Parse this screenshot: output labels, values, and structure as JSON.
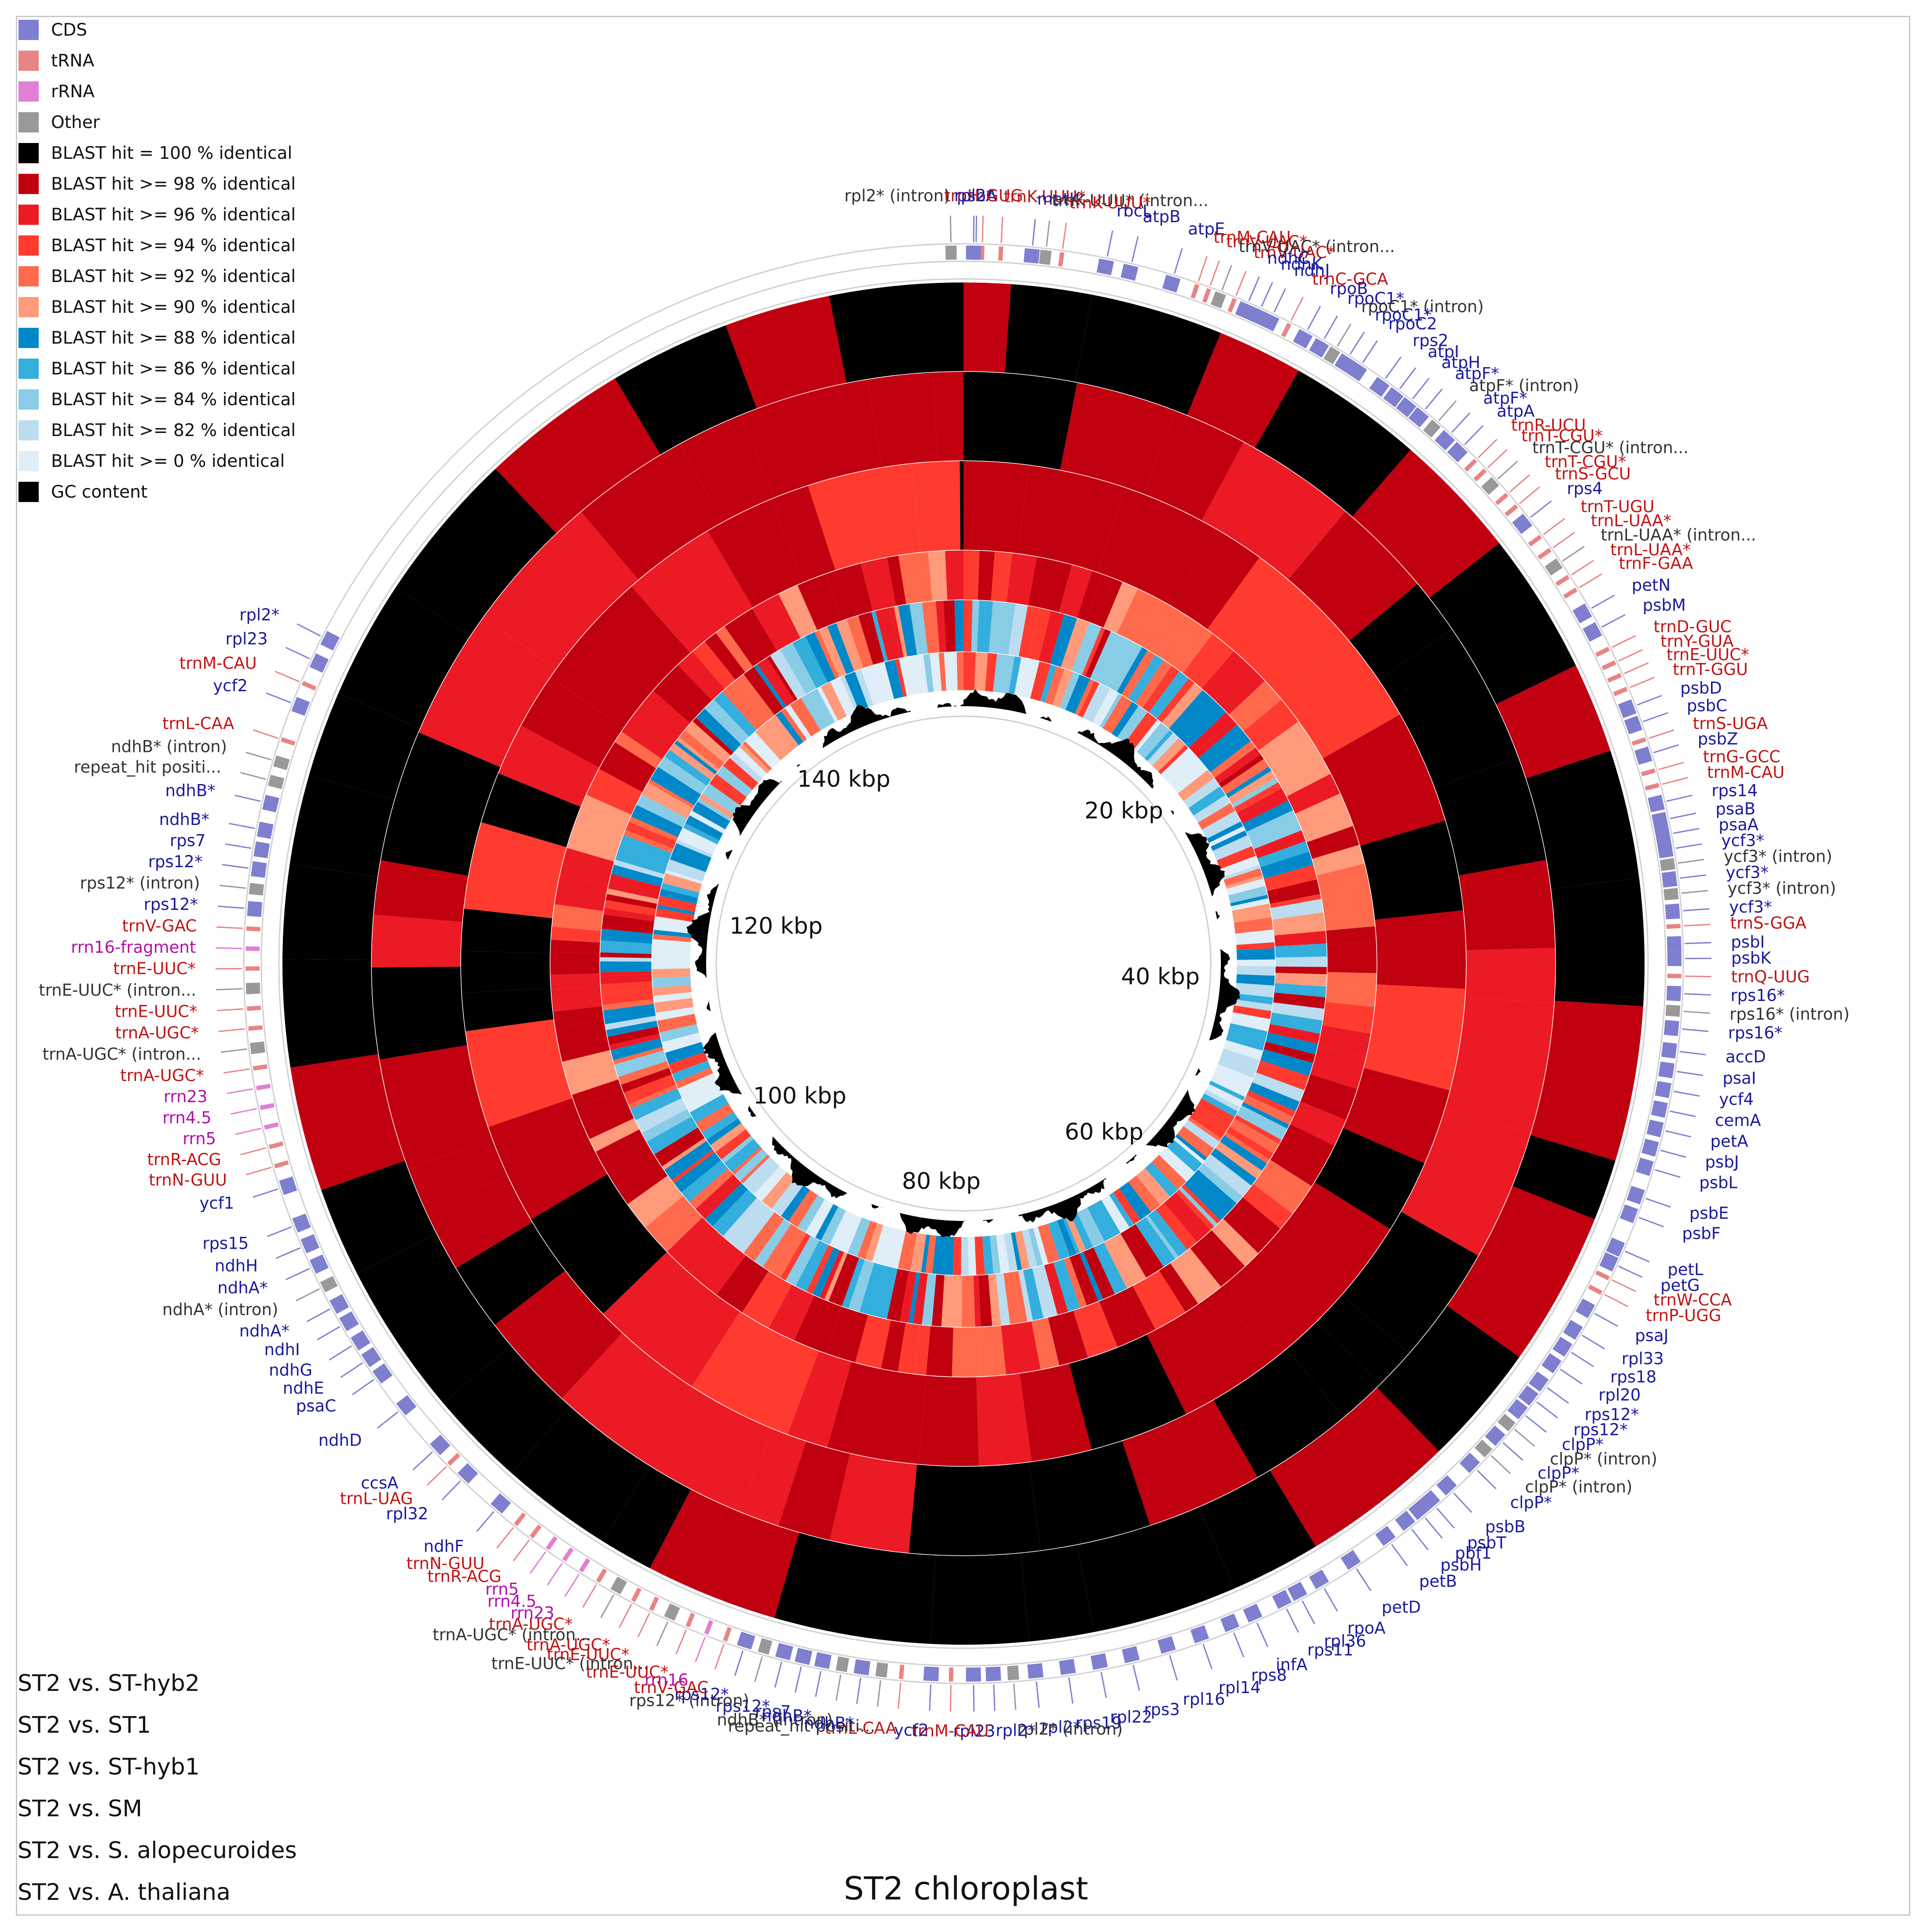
{
  "title": "ST2 chloroplast",
  "legend": [
    {
      "label": "CDS",
      "color": "#7f7fd0"
    },
    {
      "label": "tRNA",
      "color": "#e88484"
    },
    {
      "label": "rRNA",
      "color": "#e07fd4"
    },
    {
      "label": "Other",
      "color": "#999999"
    },
    {
      "label": "BLAST hit = 100 % identical",
      "color": "#000000"
    },
    {
      "label": "BLAST hit >= 98 % identical",
      "color": "#c10010"
    },
    {
      "label": "BLAST hit >= 96 % identical",
      "color": "#ec1a24"
    },
    {
      "label": "BLAST hit >= 94 % identical",
      "color": "#ff3b30"
    },
    {
      "label": "BLAST hit >= 92 % identical",
      "color": "#ff6a4d"
    },
    {
      "label": "BLAST hit >= 90 % identical",
      "color": "#ff9a7a"
    },
    {
      "label": "BLAST hit >= 88 % identical",
      "color": "#0088c8"
    },
    {
      "label": "BLAST hit >= 86 % identical",
      "color": "#33aedd"
    },
    {
      "label": "BLAST hit >= 84 % identical",
      "color": "#88cce6"
    },
    {
      "label": "BLAST hit >= 82 % identical",
      "color": "#bcdcf0"
    },
    {
      "label": "BLAST hit >= 0 % identical",
      "color": "#e0eef8"
    },
    {
      "label": "GC content",
      "color": "#000000"
    }
  ],
  "rings": [
    "ST2 vs. ST-hyb2",
    "ST2 vs. ST1",
    "ST2 vs. ST-hyb1",
    "ST2 vs. SM",
    "ST2 vs. S. alopecuroides",
    "ST2 vs. A. thaliana"
  ],
  "kbp_labels": [
    "20 kbp",
    "40 kbp",
    "60 kbp",
    "80 kbp",
    "100 kbp",
    "120 kbp",
    "140 kbp"
  ],
  "gene_colors": {
    "cds": "#1a1a9c",
    "trna": "#c01515",
    "rrna": "#b010a8",
    "other": "#333333"
  },
  "genes": [
    {
      "name": "trnK-UUU*",
      "type": "trna",
      "angle": 3.0
    },
    {
      "name": "psbA",
      "type": "cds",
      "angle": 1.0
    },
    {
      "name": "trnH-GUG",
      "type": "trna",
      "angle": 1.5
    },
    {
      "name": "rpl2*",
      "type": "cds",
      "angle": 0.8
    },
    {
      "name": "rpl2* (intron)",
      "type": "other",
      "angle": -1.0
    },
    {
      "name": "matK",
      "type": "cds",
      "angle": 5.5
    },
    {
      "name": "trnK-UUU* (intron...",
      "type": "other",
      "angle": 6.6
    },
    {
      "name": "trnK-UUU*",
      "type": "trna",
      "angle": 7.9
    },
    {
      "name": "rbcL",
      "type": "cds",
      "angle": 11.5
    },
    {
      "name": "atpB",
      "type": "cds",
      "angle": 13.5
    },
    {
      "name": "atpE",
      "type": "cds",
      "angle": 17.0
    },
    {
      "name": "trnM-CAU",
      "type": "trna",
      "angle": 19.0
    },
    {
      "name": "trnV-UAC*",
      "type": "trna",
      "angle": 20.0
    },
    {
      "name": "trnV-UAC* (intron...",
      "type": "other",
      "angle": 21.0
    },
    {
      "name": "trnV-UAC*",
      "type": "trna",
      "angle": 22.2
    },
    {
      "name": "ndhC",
      "type": "cds",
      "angle": 23.3
    },
    {
      "name": "ndhK",
      "type": "cds",
      "angle": 24.4
    },
    {
      "name": "ndhJ",
      "type": "cds",
      "angle": 25.5
    },
    {
      "name": "trnC-GCA",
      "type": "trna",
      "angle": 27.0
    },
    {
      "name": "rpoB",
      "type": "cds",
      "angle": 28.5
    },
    {
      "name": "rpoC1*",
      "type": "cds",
      "angle": 30.0
    },
    {
      "name": "rpoC1* (intron)",
      "type": "other",
      "angle": 31.2
    },
    {
      "name": "rpoC1*",
      "type": "cds",
      "angle": 32.4
    },
    {
      "name": "rpoC2",
      "type": "cds",
      "angle": 33.6
    },
    {
      "name": "rps2",
      "type": "cds",
      "angle": 35.8
    },
    {
      "name": "atpI",
      "type": "cds",
      "angle": 37.2
    },
    {
      "name": "atpH",
      "type": "cds",
      "angle": 38.5
    },
    {
      "name": "atpF*",
      "type": "cds",
      "angle": 39.8
    },
    {
      "name": "atpF* (intron)",
      "type": "other",
      "angle": 41.2
    },
    {
      "name": "atpF*",
      "type": "cds",
      "angle": 42.6
    },
    {
      "name": "atpA",
      "type": "cds",
      "angle": 44.0
    },
    {
      "name": "trnR-UCU",
      "type": "trna",
      "angle": 45.5
    },
    {
      "name": "trnT-CGU*",
      "type": "trna",
      "angle": 46.6
    },
    {
      "name": "trnT-CGU* (intron...",
      "type": "other",
      "angle": 47.8
    },
    {
      "name": "trnT-CGU*",
      "type": "trna",
      "angle": 49.2
    },
    {
      "name": "trnS-GCU",
      "type": "trna",
      "angle": 50.4
    },
    {
      "name": "rps4",
      "type": "cds",
      "angle": 51.8
    },
    {
      "name": "trnT-UGU",
      "type": "trna",
      "angle": 53.5
    },
    {
      "name": "trnL-UAA*",
      "type": "trna",
      "angle": 54.8
    },
    {
      "name": "trnL-UAA* (intron...",
      "type": "other",
      "angle": 56.1
    },
    {
      "name": "trnL-UAA*",
      "type": "trna",
      "angle": 57.4
    },
    {
      "name": "trnF-GAA",
      "type": "trna",
      "angle": 58.6
    },
    {
      "name": "petN",
      "type": "cds",
      "angle": 60.5
    },
    {
      "name": "psbM",
      "type": "cds",
      "angle": 62.2
    },
    {
      "name": "trnD-GUC",
      "type": "trna",
      "angle": 64.0
    },
    {
      "name": "trnY-GUA",
      "type": "trna",
      "angle": 65.2
    },
    {
      "name": "trnE-UUC*",
      "type": "trna",
      "angle": 66.3
    },
    {
      "name": "trnT-GGU",
      "type": "trna",
      "angle": 67.5
    },
    {
      "name": "psbD",
      "type": "cds",
      "angle": 69.0
    },
    {
      "name": "psbC",
      "type": "cds",
      "angle": 70.4
    },
    {
      "name": "trnS-UGA",
      "type": "trna",
      "angle": 71.8
    },
    {
      "name": "psbZ",
      "type": "cds",
      "angle": 73.0
    },
    {
      "name": "trnG-GCC",
      "type": "trna",
      "angle": 74.4
    },
    {
      "name": "trnM-CAU",
      "type": "trna",
      "angle": 75.6
    },
    {
      "name": "rps14",
      "type": "cds",
      "angle": 77.0
    },
    {
      "name": "psaB",
      "type": "cds",
      "angle": 78.4
    },
    {
      "name": "psaA",
      "type": "cds",
      "angle": 79.6
    },
    {
      "name": "ycf3*",
      "type": "cds",
      "angle": 80.8
    },
    {
      "name": "ycf3* (intron)",
      "type": "other",
      "angle": 82.0
    },
    {
      "name": "ycf3*",
      "type": "cds",
      "angle": 83.2
    },
    {
      "name": "ycf3* (intron)",
      "type": "other",
      "angle": 84.4
    },
    {
      "name": "ycf3*",
      "type": "cds",
      "angle": 85.8
    },
    {
      "name": "trnS-GGA",
      "type": "trna",
      "angle": 87.0
    },
    {
      "name": "psbI",
      "type": "cds",
      "angle": 88.4
    },
    {
      "name": "psbK",
      "type": "cds",
      "angle": 89.6
    },
    {
      "name": "trnQ-UUG",
      "type": "trna",
      "angle": 91.0
    },
    {
      "name": "rps16*",
      "type": "cds",
      "angle": 92.4
    },
    {
      "name": "rps16* (intron)",
      "type": "other",
      "angle": 93.8
    },
    {
      "name": "rps16*",
      "type": "cds",
      "angle": 95.2
    },
    {
      "name": "accD",
      "type": "cds",
      "angle": 97.0
    },
    {
      "name": "psaI",
      "type": "cds",
      "angle": 98.6
    },
    {
      "name": "ycf4",
      "type": "cds",
      "angle": 100.2
    },
    {
      "name": "cemA",
      "type": "cds",
      "angle": 101.8
    },
    {
      "name": "petA",
      "type": "cds",
      "angle": 103.4
    },
    {
      "name": "psbJ",
      "type": "cds",
      "angle": 105.0
    },
    {
      "name": "psbL",
      "type": "cds",
      "angle": 106.6
    },
    {
      "name": "psbE",
      "type": "cds",
      "angle": 109.0
    },
    {
      "name": "psbF",
      "type": "cds",
      "angle": 110.6
    },
    {
      "name": "petL",
      "type": "cds",
      "angle": 113.5
    },
    {
      "name": "petG",
      "type": "cds",
      "angle": 114.8
    },
    {
      "name": "trnW-CCA",
      "type": "trna",
      "angle": 116.0
    },
    {
      "name": "trnP-UGG",
      "type": "trna",
      "angle": 117.3
    },
    {
      "name": "psaJ",
      "type": "cds",
      "angle": 119.0
    },
    {
      "name": "rpl33",
      "type": "cds",
      "angle": 121.0
    },
    {
      "name": "rps18",
      "type": "cds",
      "angle": 122.6
    },
    {
      "name": "rpl20",
      "type": "cds",
      "angle": 124.2
    },
    {
      "name": "rps12*",
      "type": "cds",
      "angle": 126.0
    },
    {
      "name": "rps12*",
      "type": "cds",
      "angle": 127.4
    },
    {
      "name": "clpP*",
      "type": "cds",
      "angle": 128.8
    },
    {
      "name": "clpP* (intron)",
      "type": "other",
      "angle": 130.2
    },
    {
      "name": "clpP*",
      "type": "cds",
      "angle": 131.6
    },
    {
      "name": "clpP* (intron)",
      "type": "other",
      "angle": 133.0
    },
    {
      "name": "clpP*",
      "type": "cds",
      "angle": 134.6
    },
    {
      "name": "psbB",
      "type": "cds",
      "angle": 137.2
    },
    {
      "name": "psbT",
      "type": "cds",
      "angle": 139.0
    },
    {
      "name": "pbf1",
      "type": "cds",
      "angle": 140.2
    },
    {
      "name": "psbH",
      "type": "cds",
      "angle": 141.6
    },
    {
      "name": "petB",
      "type": "cds",
      "angle": 143.6
    },
    {
      "name": "petD",
      "type": "cds",
      "angle": 147.0
    },
    {
      "name": "rpoA",
      "type": "cds",
      "angle": 150.0
    },
    {
      "name": "rpl36",
      "type": "cds",
      "angle": 152.0
    },
    {
      "name": "rps11",
      "type": "cds",
      "angle": 153.4
    },
    {
      "name": "infA",
      "type": "cds",
      "angle": 156.0
    },
    {
      "name": "rps8",
      "type": "cds",
      "angle": 158.0
    },
    {
      "name": "rpl14",
      "type": "cds",
      "angle": 160.6
    },
    {
      "name": "rpl16",
      "type": "cds",
      "angle": 163.4
    },
    {
      "name": "rps3",
      "type": "cds",
      "angle": 166.4
    },
    {
      "name": "rpl22",
      "type": "cds",
      "angle": 169.0
    },
    {
      "name": "rps19",
      "type": "cds",
      "angle": 171.6
    },
    {
      "name": "rpl2*",
      "type": "cds",
      "angle": 174.2
    },
    {
      "name": "rpl2* (intron)",
      "type": "other",
      "angle": 176.0
    },
    {
      "name": "rpl2*",
      "type": "cds",
      "angle": 177.6
    },
    {
      "name": "rpl23",
      "type": "cds",
      "angle": 179.2
    },
    {
      "name": "trnM-CAU",
      "type": "trna",
      "angle": 181.0
    },
    {
      "name": "ycf2",
      "type": "cds",
      "angle": 182.6
    },
    {
      "name": "trnL-CAA",
      "type": "trna",
      "angle": 185.0
    },
    {
      "name": "repeat_hit positi...",
      "type": "other",
      "angle": 186.6
    },
    {
      "name": "ndhB*",
      "type": "cds",
      "angle": 188.2
    },
    {
      "name": "ndhB* (intron)",
      "type": "other",
      "angle": 189.8
    },
    {
      "name": "ndhB*",
      "type": "cds",
      "angle": 191.4
    },
    {
      "name": "rps7",
      "type": "cds",
      "angle": 193.0
    },
    {
      "name": "rps12*",
      "type": "cds",
      "angle": 194.6
    },
    {
      "name": "rps12* (intron)",
      "type": "other",
      "angle": 196.2
    },
    {
      "name": "rps12*",
      "type": "cds",
      "angle": 197.8
    },
    {
      "name": "trnV-GAC",
      "type": "trna",
      "angle": 199.4
    },
    {
      "name": "rrn16",
      "type": "rrna",
      "angle": 201.0
    },
    {
      "name": "trnE-UUC*",
      "type": "trna",
      "angle": 202.6
    },
    {
      "name": "trnE-UUC* (intron...",
      "type": "other",
      "angle": 204.2
    },
    {
      "name": "trnE-UUC*",
      "type": "trna",
      "angle": 205.8
    },
    {
      "name": "trnA-UGC*",
      "type": "trna",
      "angle": 207.4
    },
    {
      "name": "trnA-UGC* (intron...",
      "type": "other",
      "angle": 209.0
    },
    {
      "name": "trnA-UGC*",
      "type": "trna",
      "angle": 210.6
    },
    {
      "name": "rrn23",
      "type": "rrna",
      "angle": 212.2
    },
    {
      "name": "rrn4.5",
      "type": "rrna",
      "angle": 213.8
    },
    {
      "name": "rrn5",
      "type": "rrna",
      "angle": 215.4
    },
    {
      "name": "trnR-ACG",
      "type": "trna",
      "angle": 217.0
    },
    {
      "name": "trnN-GUU",
      "type": "trna",
      "angle": 218.6
    },
    {
      "name": "ndhF",
      "type": "cds",
      "angle": 220.6
    },
    {
      "name": "rpl32",
      "type": "cds",
      "angle": 224.2
    },
    {
      "name": "trnL-UAG",
      "type": "trna",
      "angle": 225.8
    },
    {
      "name": "ccsA",
      "type": "cds",
      "angle": 227.4
    },
    {
      "name": "ndhD",
      "type": "cds",
      "angle": 231.6
    },
    {
      "name": "psaC",
      "type": "cds",
      "angle": 234.8
    },
    {
      "name": "ndhE",
      "type": "cds",
      "angle": 236.4
    },
    {
      "name": "ndhG",
      "type": "cds",
      "angle": 238.0
    },
    {
      "name": "ndhI",
      "type": "cds",
      "angle": 239.8
    },
    {
      "name": "ndhA*",
      "type": "cds",
      "angle": 241.4
    },
    {
      "name": "ndhA* (intron)",
      "type": "other",
      "angle": 243.2
    },
    {
      "name": "ndhA*",
      "type": "cds",
      "angle": 245.0
    },
    {
      "name": "ndhH",
      "type": "cds",
      "angle": 246.8
    },
    {
      "name": "rps15",
      "type": "cds",
      "angle": 248.6
    },
    {
      "name": "ycf1",
      "type": "cds",
      "angle": 251.8
    },
    {
      "name": "trnN-GUU",
      "type": "trna",
      "angle": 253.6
    },
    {
      "name": "trnR-ACG",
      "type": "trna",
      "angle": 255.2
    },
    {
      "name": "rrn5",
      "type": "rrna",
      "angle": 256.8
    },
    {
      "name": "rrn4.5",
      "type": "rrna",
      "angle": 258.4
    },
    {
      "name": "rrn23",
      "type": "rrna",
      "angle": 260.0
    },
    {
      "name": "trnA-UGC*",
      "type": "trna",
      "angle": 261.6
    },
    {
      "name": "trnA-UGC* (intron...",
      "type": "other",
      "angle": 263.2
    },
    {
      "name": "trnA-UGC*",
      "type": "trna",
      "angle": 264.8
    },
    {
      "name": "trnE-UUC*",
      "type": "trna",
      "angle": 266.4
    },
    {
      "name": "trnE-UUC* (intron...",
      "type": "other",
      "angle": 268.0
    },
    {
      "name": "trnE-UUC*",
      "type": "trna",
      "angle": 269.6
    },
    {
      "name": "rrn16-fragment",
      "type": "rrna",
      "angle": 271.2
    },
    {
      "name": "trnV-GAC",
      "type": "trna",
      "angle": 272.8
    },
    {
      "name": "rps12*",
      "type": "cds",
      "angle": 274.4
    },
    {
      "name": "rps12* (intron)",
      "type": "other",
      "angle": 276.0
    },
    {
      "name": "rps12*",
      "type": "cds",
      "angle": 277.6
    },
    {
      "name": "rps7",
      "type": "cds",
      "angle": 279.2
    },
    {
      "name": "ndhB*",
      "type": "cds",
      "angle": 280.8
    },
    {
      "name": "ndhB*",
      "type": "cds",
      "angle": 283.0
    },
    {
      "name": "repeat_hit positi...",
      "type": "other",
      "angle": 284.8
    },
    {
      "name": "ndhB* (intron)",
      "type": "other",
      "angle": 286.4
    },
    {
      "name": "trnL-CAA",
      "type": "trna",
      "angle": 288.2
    },
    {
      "name": "ycf2",
      "type": "cds",
      "angle": 291.2
    },
    {
      "name": "trnM-CAU",
      "type": "trna",
      "angle": 293.0
    },
    {
      "name": "rpl23",
      "type": "cds",
      "angle": 295.0
    },
    {
      "name": "rpl2*",
      "type": "cds",
      "angle": 297.0
    }
  ]
}
